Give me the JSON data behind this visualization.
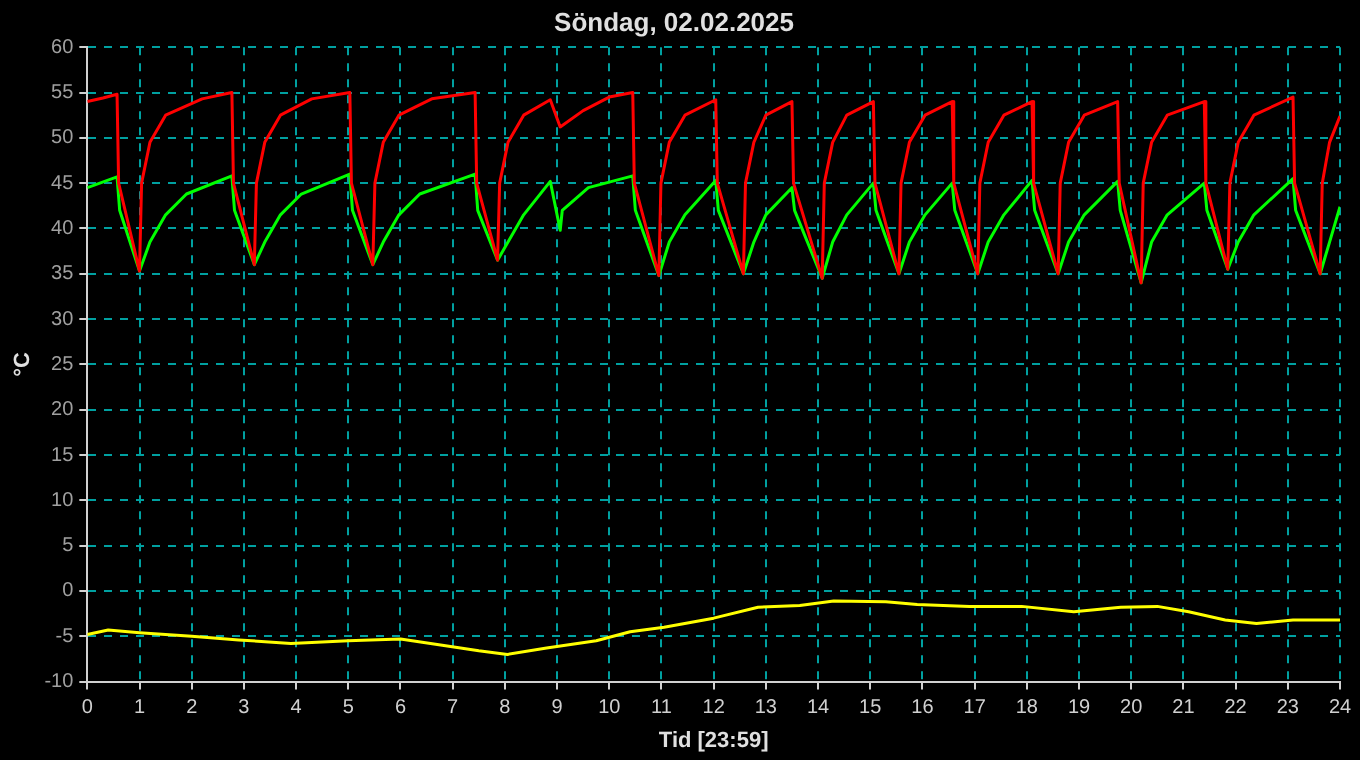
{
  "chart_data": {
    "type": "line",
    "title": "Söndag, 02.02.2025",
    "xlabel": "Tid [23:59]",
    "ylabel": "°C",
    "xlim": [
      0,
      24
    ],
    "xticks": [
      0,
      1,
      2,
      3,
      4,
      5,
      6,
      7,
      8,
      9,
      10,
      11,
      12,
      13,
      14,
      15,
      16,
      17,
      18,
      19,
      20,
      21,
      22,
      23,
      24
    ],
    "ylim": [
      -10,
      60
    ],
    "yticks": [
      -10,
      -5,
      0,
      5,
      10,
      15,
      20,
      25,
      30,
      35,
      40,
      45,
      50,
      55,
      60
    ],
    "grid": true,
    "legend": false,
    "marker": "none",
    "line_style": "solid",
    "series": [
      {
        "color": "#ff0000",
        "x": [
          0,
          0.3,
          0.57,
          0.6,
          1.0,
          1.04,
          1.2,
          1.5,
          2.2,
          2.77,
          2.8,
          3.2,
          3.24,
          3.4,
          3.7,
          4.3,
          5.03,
          5.06,
          5.47,
          5.51,
          5.67,
          5.97,
          6.6,
          7.43,
          7.46,
          7.86,
          7.9,
          8.06,
          8.36,
          8.87,
          9.06,
          9.5,
          10.0,
          10.45,
          10.48,
          10.95,
          10.99,
          11.15,
          11.45,
          12.04,
          12.07,
          12.57,
          12.61,
          12.77,
          13.0,
          13.5,
          13.53,
          14.08,
          14.12,
          14.28,
          14.55,
          15.06,
          15.09,
          15.55,
          15.59,
          15.75,
          16.05,
          16.57,
          16.6,
          17.06,
          17.1,
          17.26,
          17.56,
          18.1,
          18.13,
          18.6,
          18.64,
          18.8,
          19.1,
          19.74,
          19.77,
          20.19,
          20.23,
          20.39,
          20.69,
          21.4,
          21.43,
          21.85,
          21.89,
          22.05,
          22.35,
          23.1,
          23.13,
          23.62,
          23.66,
          23.8,
          24
        ],
        "values": [
          54,
          54.4,
          54.8,
          45,
          35.3,
          45,
          49.5,
          52.5,
          54.3,
          55,
          45,
          36,
          45,
          49.5,
          52.5,
          54.3,
          55,
          45,
          36,
          45,
          49.5,
          52.5,
          54.3,
          55,
          45,
          36.5,
          45,
          49.5,
          52.5,
          54.2,
          51.2,
          53,
          54.5,
          55,
          45,
          34.8,
          45,
          49.5,
          52.5,
          54.2,
          45,
          35,
          45,
          49.5,
          52.5,
          54,
          45,
          34.5,
          45,
          49.5,
          52.5,
          54,
          45,
          35,
          45,
          49.5,
          52.5,
          54,
          45,
          35,
          45,
          49.5,
          52.5,
          54,
          45,
          35,
          45,
          49.5,
          52.5,
          54,
          45,
          34,
          45,
          49.5,
          52.5,
          54,
          45,
          35.5,
          45,
          49.5,
          52.5,
          54.5,
          45,
          35,
          45,
          49.5,
          52.4
        ]
      },
      {
        "color": "#00ff00",
        "x": [
          0,
          0.57,
          0.62,
          1.0,
          1.2,
          1.5,
          1.9,
          2.77,
          2.82,
          3.2,
          3.4,
          3.7,
          4.1,
          5.03,
          5.08,
          5.47,
          5.67,
          5.97,
          6.37,
          7.43,
          7.48,
          7.86,
          8.06,
          8.36,
          8.87,
          9.06,
          9.1,
          9.6,
          10.45,
          10.5,
          10.95,
          11.15,
          11.45,
          12.04,
          12.09,
          12.57,
          12.77,
          13.0,
          13.5,
          13.55,
          14.08,
          14.28,
          14.55,
          15.06,
          15.11,
          15.55,
          15.75,
          16.05,
          16.57,
          16.62,
          17.06,
          17.26,
          17.56,
          18.1,
          18.15,
          18.6,
          18.8,
          19.1,
          19.74,
          19.79,
          20.19,
          20.39,
          20.69,
          21.4,
          21.45,
          21.85,
          22.05,
          22.35,
          23.1,
          23.15,
          23.62,
          23.8,
          24
        ],
        "values": [
          44.5,
          45.7,
          42,
          35.3,
          38.5,
          41.5,
          43.8,
          45.8,
          42,
          36,
          38.5,
          41.5,
          43.8,
          46,
          42,
          36,
          38.5,
          41.5,
          43.8,
          46,
          42,
          36.5,
          38.5,
          41.5,
          45.2,
          39.8,
          42,
          44.5,
          45.8,
          42,
          34.8,
          38.5,
          41.5,
          45.3,
          42,
          35,
          38.5,
          41.5,
          44.5,
          42,
          34.5,
          38.5,
          41.5,
          45,
          42,
          35,
          38.5,
          41.5,
          45,
          42,
          35,
          38.5,
          41.5,
          45.3,
          42,
          35,
          38.5,
          41.5,
          45.2,
          42,
          34,
          38.5,
          41.5,
          45,
          42,
          35.5,
          38.5,
          41.5,
          45.5,
          42,
          35,
          38.5,
          42.4
        ]
      },
      {
        "color": "#ffff00",
        "x": [
          0,
          0.4,
          1,
          2,
          2.9,
          3.9,
          5,
          6,
          6.8,
          7.5,
          8.05,
          8.8,
          9.75,
          10.4,
          11.05,
          12,
          12.85,
          13.65,
          14.3,
          15.3,
          15.9,
          16.9,
          17.9,
          18.9,
          19.8,
          20.5,
          21.1,
          21.8,
          22.4,
          23.1,
          24
        ],
        "values": [
          -4.8,
          -4.3,
          -4.6,
          -5.0,
          -5.4,
          -5.8,
          -5.5,
          -5.3,
          -6.0,
          -6.6,
          -7.0,
          -6.3,
          -5.5,
          -4.5,
          -4.0,
          -3.0,
          -1.8,
          -1.6,
          -1.1,
          -1.2,
          -1.5,
          -1.7,
          -1.7,
          -2.3,
          -1.8,
          -1.7,
          -2.3,
          -3.2,
          -3.6,
          -3.2,
          -3.2
        ]
      }
    ]
  }
}
